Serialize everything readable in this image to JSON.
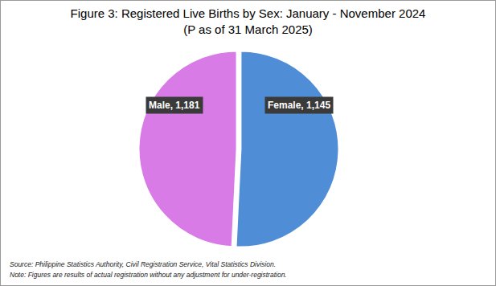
{
  "chart_data": {
    "type": "pie",
    "title": "Figure 3: Registered Live Births by Sex: January - November 2024",
    "subtitle": "(P as of 31 March 2025)",
    "categories": [
      "Male",
      "Female"
    ],
    "values": [
      1181,
      1145
    ],
    "value_labels": [
      "Male, 1,181",
      "Female, 1,145"
    ],
    "colors": [
      "#4f8ed6",
      "#d97be6"
    ],
    "data_labels": true,
    "legend": false,
    "annotations": [
      "Source: Philippine Statistics Authority, Civil Registration Service, Vital Statistics Division.",
      "Note: Figures are results of actual registration without any adjustment for under-registration."
    ]
  }
}
